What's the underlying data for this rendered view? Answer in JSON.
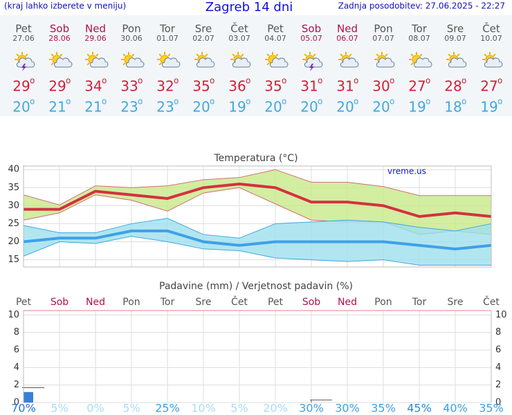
{
  "header": {
    "hint": "(kraj lahko izberete v meniju)",
    "title": "Zagreb 14 dni",
    "updated": "Zadnja posodobitev: 27.06.2025 - 22:27"
  },
  "degree_mark": "o",
  "days": [
    {
      "name": "Pet",
      "date": "27.06",
      "color": "#555555",
      "max": 29,
      "min": 20
    },
    {
      "name": "Sob",
      "date": "28.06",
      "color": "#b0104a",
      "max": 29,
      "min": 21
    },
    {
      "name": "Ned",
      "date": "29.06",
      "color": "#b0104a",
      "max": 34,
      "min": 21
    },
    {
      "name": "Pon",
      "date": "30.06",
      "color": "#555555",
      "max": 33,
      "min": 23
    },
    {
      "name": "Tor",
      "date": "01.07",
      "color": "#555555",
      "max": 32,
      "min": 23
    },
    {
      "name": "Sre",
      "date": "02.07",
      "color": "#555555",
      "max": 35,
      "min": 20
    },
    {
      "name": "Čet",
      "date": "03.07",
      "color": "#555555",
      "max": 36,
      "min": 19
    },
    {
      "name": "Pet",
      "date": "04.07",
      "color": "#555555",
      "max": 35,
      "min": 20
    },
    {
      "name": "Sob",
      "date": "05.07",
      "color": "#b0104a",
      "max": 31,
      "min": 20
    },
    {
      "name": "Ned",
      "date": "06.07",
      "color": "#b0104a",
      "max": 31,
      "min": 20
    },
    {
      "name": "Pon",
      "date": "07.07",
      "color": "#555555",
      "max": 30,
      "min": 20
    },
    {
      "name": "Tor",
      "date": "08.07",
      "color": "#555555",
      "max": 27,
      "min": 19
    },
    {
      "name": "Sre",
      "date": "09.07",
      "color": "#555555",
      "max": 28,
      "min": 18
    },
    {
      "name": "Čet",
      "date": "10.07",
      "color": "#555555",
      "max": 27,
      "min": 19
    }
  ],
  "chart_data": [
    {
      "type": "line",
      "title": "Temperatura (°C)",
      "annotation": "vreme.us",
      "ylim": [
        13,
        41
      ],
      "yticks": [
        15,
        20,
        25,
        30,
        35,
        40
      ],
      "grid": true,
      "series": [
        {
          "color": "#d63040",
          "values": [
            29,
            29,
            34,
            33,
            32,
            35,
            36,
            35,
            31,
            31,
            30,
            27,
            28,
            27
          ]
        },
        {
          "color": "#3fa0e8",
          "values": [
            20,
            21,
            21,
            23,
            23,
            20,
            19,
            20,
            20,
            20,
            20,
            19,
            18,
            19
          ]
        },
        {
          "color": "#c8e88a",
          "values": [
            33,
            30.2,
            35.5,
            35,
            35.5,
            37.2,
            37.8,
            40,
            36.5,
            36.5,
            35.3,
            32.8,
            32.8,
            32.8
          ]
        },
        {
          "color": "#c8e88a",
          "values": [
            26,
            28,
            33,
            31.5,
            28.5,
            33.5,
            35,
            30.5,
            26,
            25.5,
            25.5,
            22,
            23,
            22
          ]
        },
        {
          "color": "#9ee0ee",
          "values": [
            24.5,
            22.5,
            22.5,
            25,
            26.5,
            22,
            21,
            25,
            25.5,
            26,
            25.5,
            24,
            23,
            25
          ]
        },
        {
          "color": "#9ee0ee",
          "values": [
            16,
            20,
            19.5,
            21.5,
            20,
            18,
            17.5,
            15.5,
            15,
            14.5,
            15,
            13.5,
            13.5,
            13.5
          ]
        }
      ]
    },
    {
      "type": "bar",
      "title": "Padavine (mm) / Verjetnost padavin (%)",
      "ylim": [
        0,
        10.5
      ],
      "yticks": [
        0,
        2,
        4,
        6,
        8,
        10
      ],
      "grid": true,
      "color": "#3a7fd8",
      "values": [
        1.2,
        0,
        0,
        0,
        0,
        0,
        0,
        0,
        0,
        0,
        0,
        0,
        0,
        0
      ],
      "upper": [
        1.7,
        0,
        0,
        0,
        0,
        0,
        0,
        0,
        0.3,
        0,
        0,
        0,
        0,
        0
      ],
      "probability": [
        70,
        5,
        0,
        5,
        25,
        10,
        5,
        20,
        30,
        30,
        35,
        45,
        40,
        35
      ],
      "value_labels": [
        "70%",
        "5%",
        "0%",
        "5%",
        "25%",
        "10%",
        "5%",
        "20%",
        "30%",
        "30%",
        "35%",
        "45%",
        "40%",
        "35%"
      ],
      "label_colors": [
        "#1f78d0",
        "#a8dcf4",
        "#a8dcf4",
        "#a8dcf4",
        "#3aa0e8",
        "#a8dcf4",
        "#a8dcf4",
        "#a8dcf4",
        "#3aa0e8",
        "#3aa0e8",
        "#3aa0e8",
        "#2a88dc",
        "#3aa0e8",
        "#3aa0e8"
      ]
    }
  ]
}
